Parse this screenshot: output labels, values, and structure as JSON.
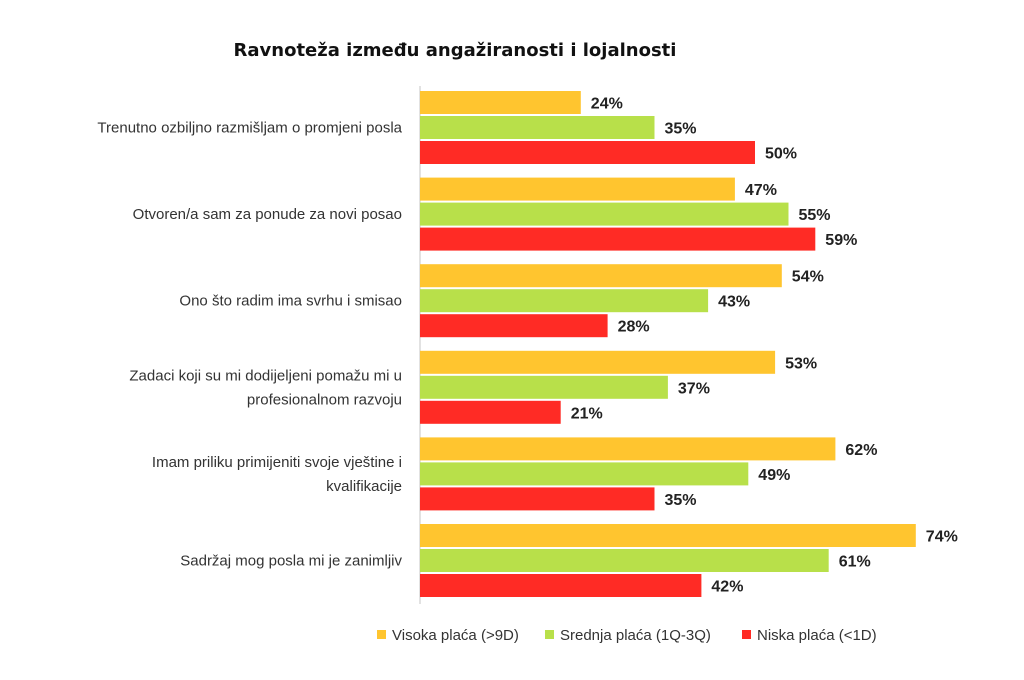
{
  "chart_data": {
    "type": "bar",
    "orientation": "horizontal",
    "title": "Ravnoteža između angažiranosti i lojalnosti",
    "categories": [
      [
        "Trenutno ozbiljno razmišljam o promjeni posla"
      ],
      [
        "Otvoren/a sam za ponude za novi posao"
      ],
      [
        "Ono što radim ima svrhu i smisao"
      ],
      [
        "Zadaci koji su mi dodijeljeni pomažu mi u",
        "profesionalnom razvoju"
      ],
      [
        "Imam priliku primijeniti svoje vještine i",
        "kvalifikacije"
      ],
      [
        "Sadržaj mog posla mi je zanimljiv"
      ]
    ],
    "series": [
      {
        "name": "Visoka plaća (>9D)",
        "color": "#FFC52F",
        "values": [
          24,
          47,
          54,
          53,
          62,
          74
        ]
      },
      {
        "name": "Srednja plaća (1Q-3Q)",
        "color": "#B8E04A",
        "values": [
          35,
          55,
          43,
          37,
          49,
          61
        ]
      },
      {
        "name": "Niska plaća (<1D)",
        "color": "#FF2B25",
        "values": [
          50,
          59,
          28,
          21,
          35,
          42
        ]
      }
    ],
    "value_suffix": "%",
    "xlim": [
      0,
      80
    ],
    "grid": false,
    "legend_position": "bottom"
  }
}
